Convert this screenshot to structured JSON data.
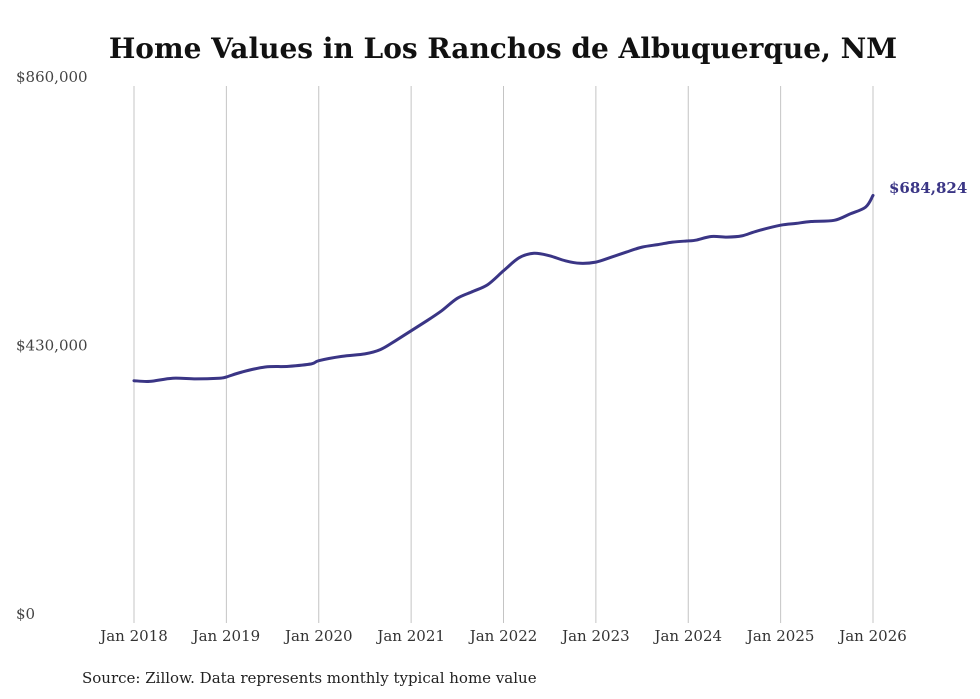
{
  "chart_data": {
    "type": "line",
    "title": "Home Values in Los Ranchos de Albuquerque, NM",
    "ylabel": "",
    "xlabel": "",
    "ylim": [
      0,
      860000
    ],
    "ytick_values": [
      0,
      430000,
      860000
    ],
    "ytick_labels": [
      "$0",
      "$430,000",
      "$860,000"
    ],
    "xlim": [
      2018.0,
      2026.0
    ],
    "xtick_values": [
      2018,
      2019,
      2020,
      2021,
      2022,
      2023,
      2024,
      2025,
      2026
    ],
    "xtick_labels": [
      "Jan 2018",
      "Jan 2019",
      "Jan 2020",
      "Jan 2021",
      "Jan 2022",
      "Jan 2023",
      "Jan 2024",
      "Jan 2025",
      "Jan 2026"
    ],
    "grid": "vertical",
    "series": [
      {
        "name": "Typical home value",
        "color": "#3a3585",
        "x": [
          2018.0,
          2018.17,
          2018.42,
          2018.67,
          2018.92,
          2019.0,
          2019.17,
          2019.42,
          2019.67,
          2019.92,
          2020.0,
          2020.25,
          2020.5,
          2020.67,
          2020.83,
          2021.0,
          2021.17,
          2021.33,
          2021.5,
          2021.67,
          2021.83,
          2022.0,
          2022.17,
          2022.33,
          2022.5,
          2022.67,
          2022.83,
          2023.0,
          2023.17,
          2023.33,
          2023.5,
          2023.67,
          2023.83,
          2024.0,
          2024.08,
          2024.25,
          2024.42,
          2024.58,
          2024.75,
          2025.0,
          2025.17,
          2025.33,
          2025.58,
          2025.75,
          2025.92,
          2026.0
        ],
        "values": [
          388000,
          387000,
          392000,
          391000,
          392000,
          394000,
          402000,
          410000,
          411000,
          415000,
          420000,
          427000,
          431000,
          438000,
          452000,
          468000,
          484000,
          500000,
          520000,
          531000,
          542000,
          564000,
          585000,
          592000,
          588000,
          580000,
          576000,
          578000,
          586000,
          594000,
          602000,
          606000,
          610000,
          612000,
          613000,
          619000,
          618000,
          620000,
          628000,
          637000,
          640000,
          643000,
          645000,
          655000,
          666000,
          684824
        ]
      }
    ],
    "end_label": "$684,824",
    "source": "Source: Zillow. Data represents monthly typical home value"
  }
}
